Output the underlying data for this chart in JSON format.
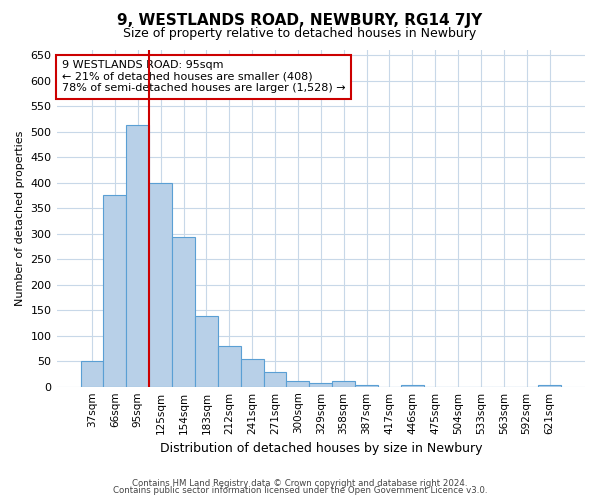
{
  "title": "9, WESTLANDS ROAD, NEWBURY, RG14 7JY",
  "subtitle": "Size of property relative to detached houses in Newbury",
  "xlabel": "Distribution of detached houses by size in Newbury",
  "ylabel": "Number of detached properties",
  "categories": [
    "37sqm",
    "66sqm",
    "95sqm",
    "125sqm",
    "154sqm",
    "183sqm",
    "212sqm",
    "241sqm",
    "271sqm",
    "300sqm",
    "329sqm",
    "358sqm",
    "387sqm",
    "417sqm",
    "446sqm",
    "475sqm",
    "504sqm",
    "533sqm",
    "563sqm",
    "592sqm",
    "621sqm"
  ],
  "values": [
    50,
    375,
    513,
    400,
    293,
    138,
    80,
    54,
    28,
    12,
    8,
    12,
    3,
    0,
    4,
    0,
    0,
    0,
    0,
    0,
    3
  ],
  "bar_color": "#b8d0e8",
  "bar_edgecolor": "#5a9fd4",
  "highlight_index": 2,
  "highlight_line_color": "#cc0000",
  "ylim": [
    0,
    660
  ],
  "yticks": [
    0,
    50,
    100,
    150,
    200,
    250,
    300,
    350,
    400,
    450,
    500,
    550,
    600,
    650
  ],
  "annotation_box_text": "9 WESTLANDS ROAD: 95sqm\n← 21% of detached houses are smaller (408)\n78% of semi-detached houses are larger (1,528) →",
  "annotation_box_color": "#cc0000",
  "footer_line1": "Contains HM Land Registry data © Crown copyright and database right 2024.",
  "footer_line2": "Contains public sector information licensed under the Open Government Licence v3.0.",
  "background_color": "#ffffff",
  "grid_color": "#c8d8e8",
  "title_fontsize": 11,
  "subtitle_fontsize": 9,
  "xlabel_fontsize": 9,
  "ylabel_fontsize": 8,
  "tick_fontsize": 8,
  "xtick_fontsize": 7.5,
  "annot_fontsize": 8
}
